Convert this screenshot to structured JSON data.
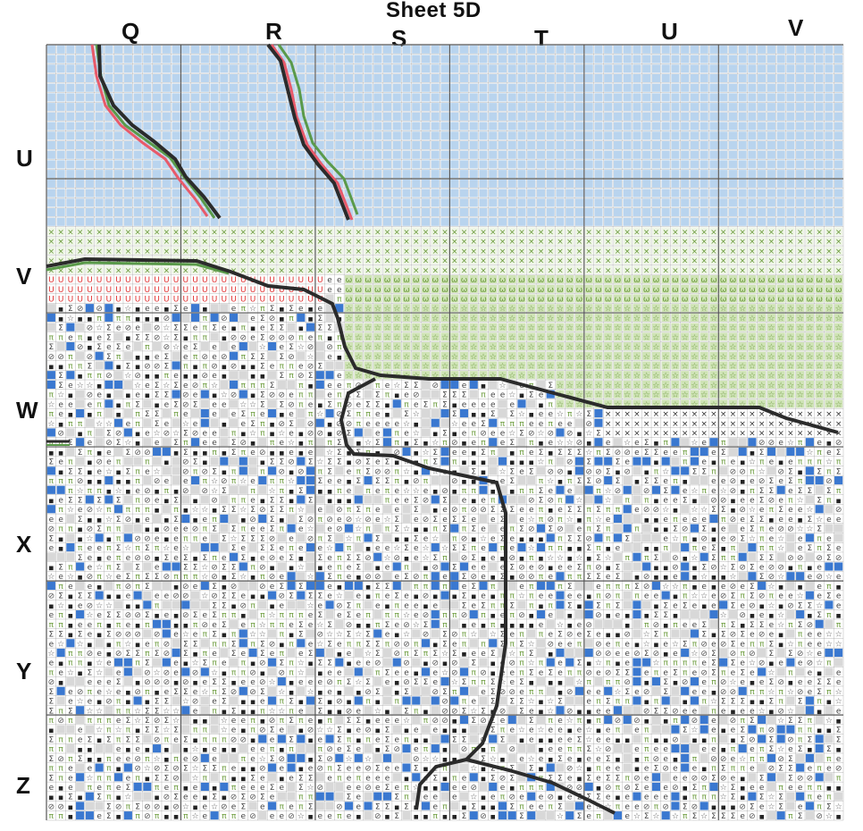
{
  "sheet": {
    "title": "Sheet  5D"
  },
  "column_labels": [
    "Q",
    "R",
    "S",
    "T",
    "U",
    "V"
  ],
  "row_labels": [
    "U",
    "V",
    "W",
    "X",
    "Y",
    "Z"
  ],
  "colors": {
    "sky_blue": "#b9d4ee",
    "sky_blue_line": "#8fb2d8",
    "green_x": "#6a9a3a",
    "green_light": "#cfe3b6",
    "red_symbol": "#e03030",
    "blue_square": "#3a78d0",
    "outline_dark": "#2b2b2b",
    "outline_red": "#e85a6a",
    "outline_green": "#5a9a4a",
    "grid_line": "#9a9a9a",
    "major_grid": "#555555"
  },
  "symbols": [
    "×",
    "ω",
    "☆",
    "e",
    "π",
    "Σ",
    "■",
    "⊘",
    "n",
    "U"
  ]
}
